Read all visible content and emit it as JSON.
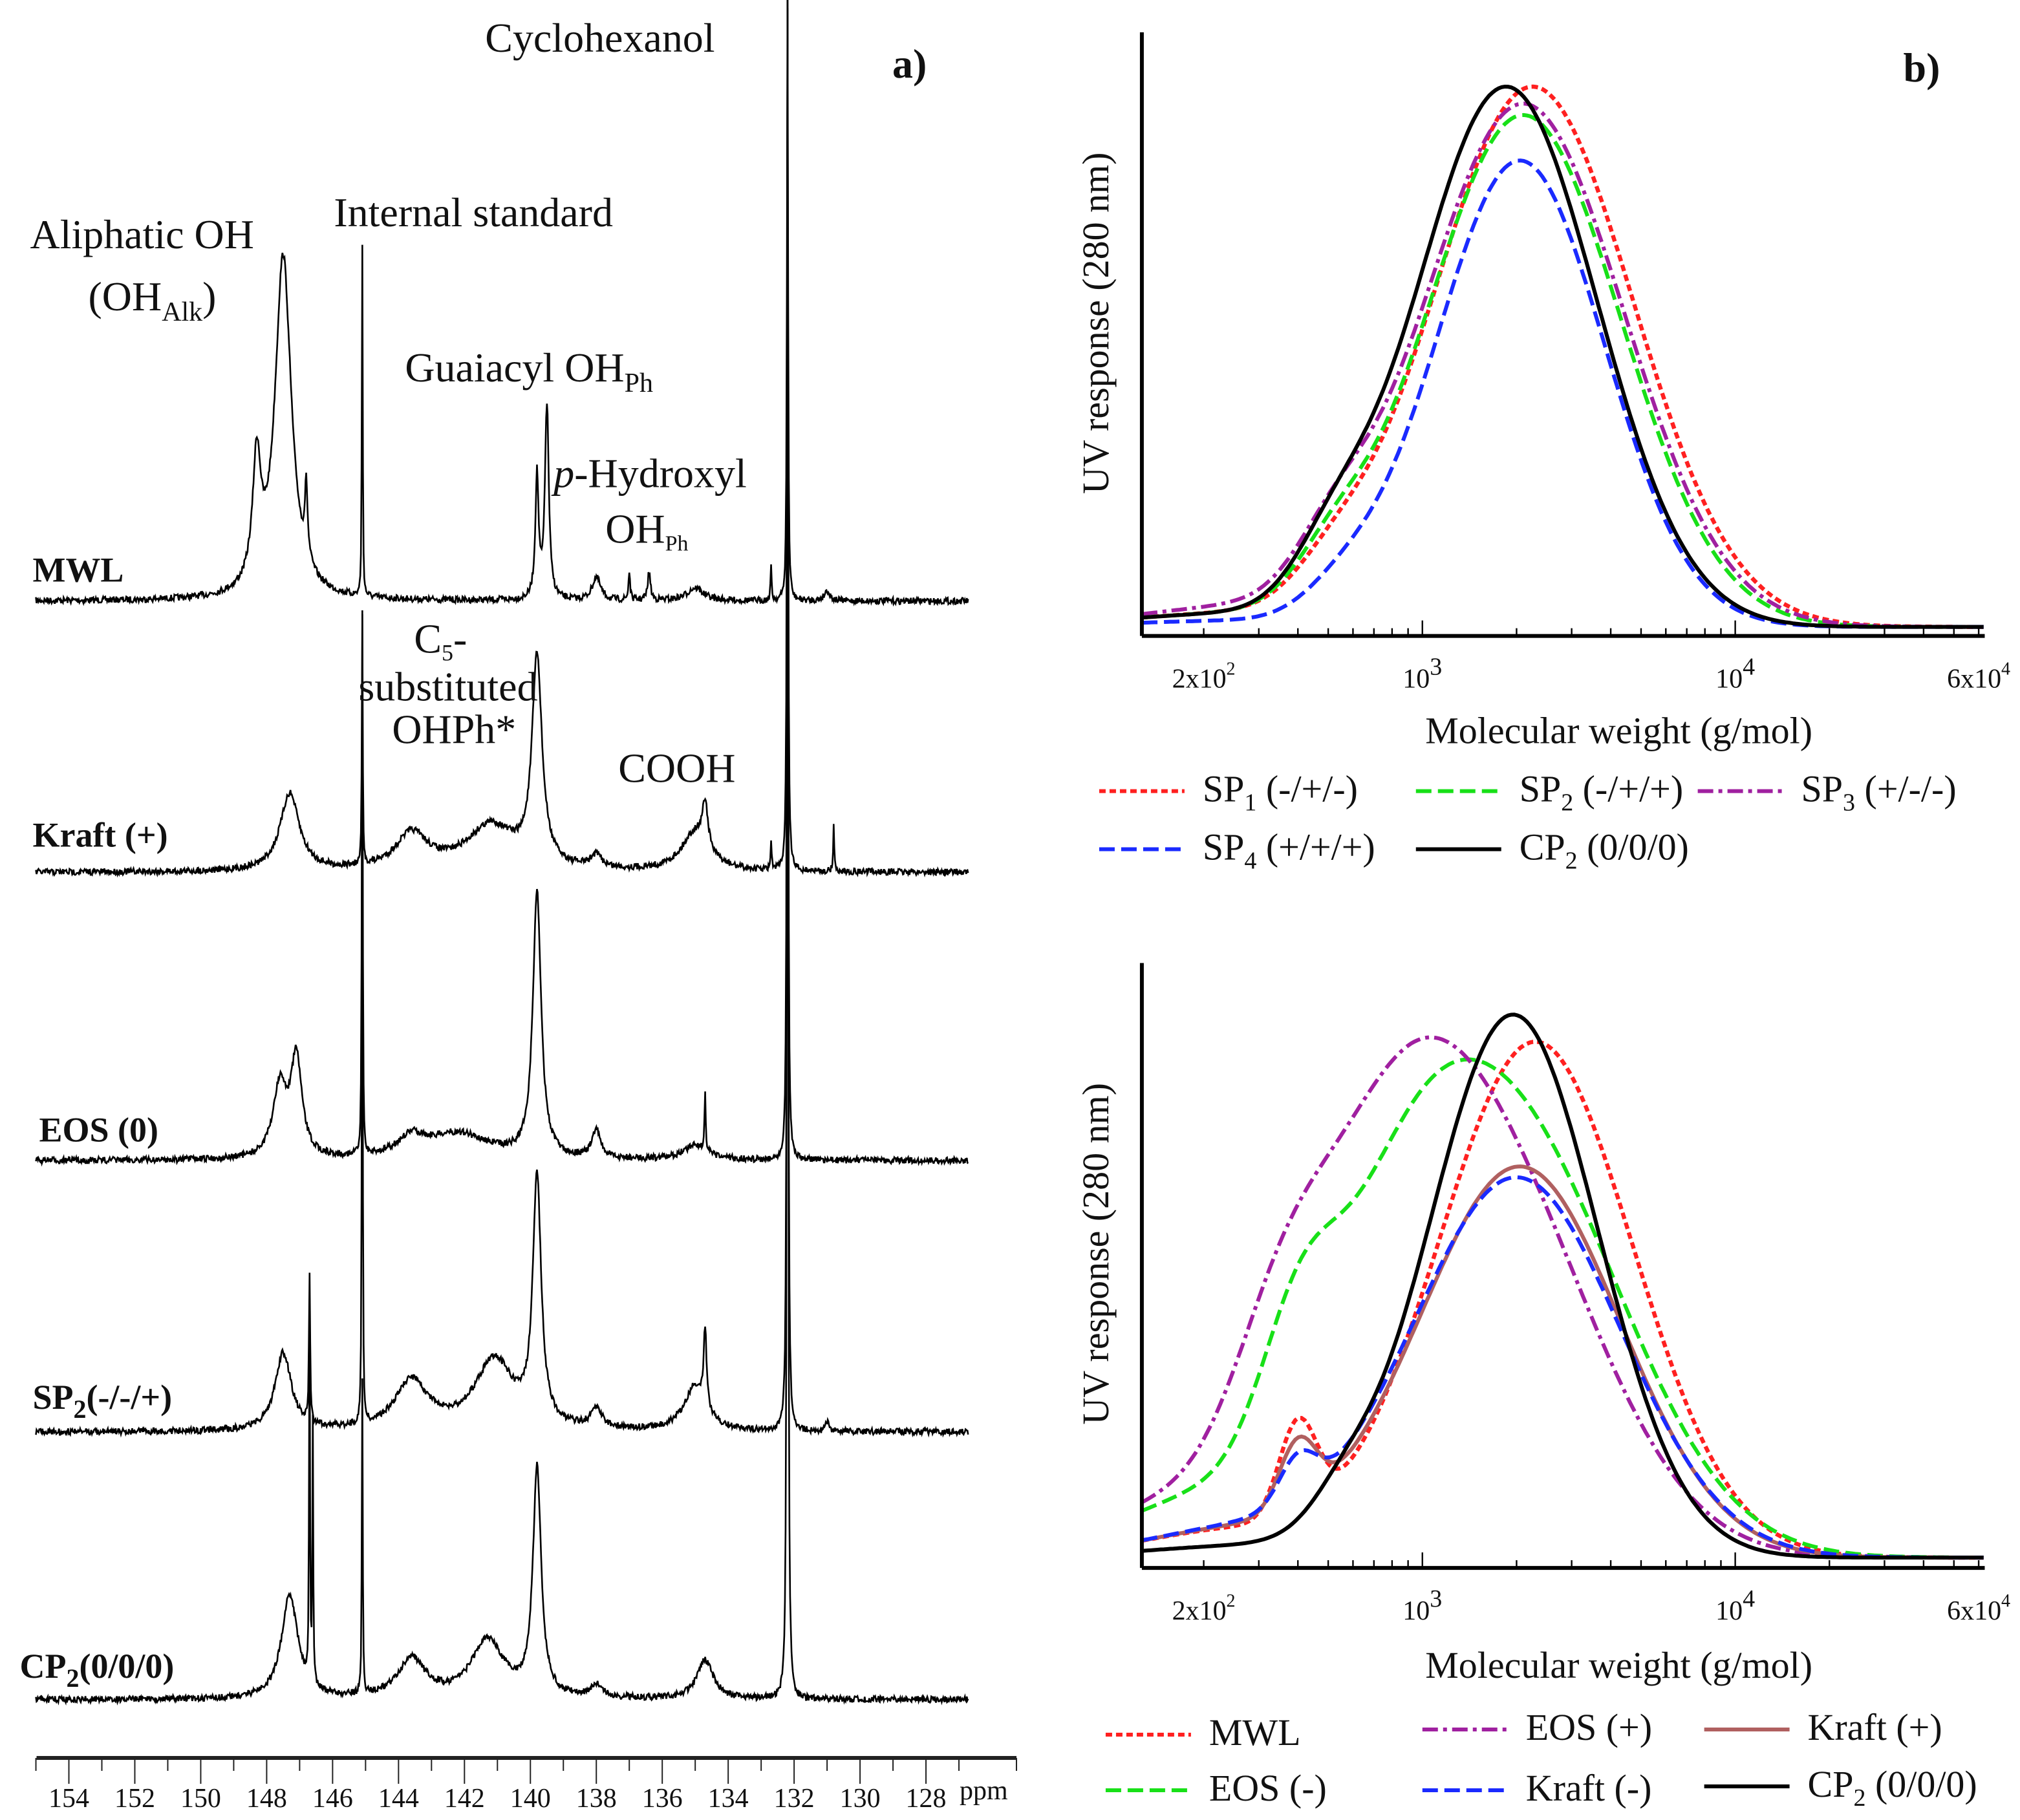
{
  "chart_data": [
    {
      "panel": "a)",
      "type": "line",
      "title": "",
      "xlabel": "ppm",
      "x_ticks": [
        "154",
        "152",
        "150",
        "148",
        "146",
        "144",
        "142",
        "140",
        "138",
        "136",
        "134",
        "132",
        "130",
        "128"
      ],
      "xlim": [
        155,
        126.5
      ],
      "x_reversed": true,
      "annotations": {
        "cyclohexanol": "Cyclohexanol",
        "internal_standard": "Internal standard",
        "aliphatic": "Aliphatic OH",
        "aliphatic_paren_open": "(OH",
        "aliphatic_sub": "Alk",
        "aliphatic_paren_close": ")",
        "guaiacyl": "Guaiacyl OH",
        "guaiacyl_sub": "Ph",
        "p_italic": "p",
        "p_hydroxyl": "-Hydroxyl",
        "p_oh": "OH",
        "p_oh_sub": "Ph",
        "c5_line1": "C",
        "c5_line1_sub": "5",
        "c5_line1_end": "-",
        "c5_line2": "substituted",
        "c5_line3": "OHPh*",
        "cooh": "COOH"
      },
      "series": [
        {
          "name": "MWL",
          "peaks": [
            [
              148.3,
              95,
              0.15
            ],
            [
              147.5,
              265,
              0.3
            ],
            [
              146.8,
              55,
              0.05
            ],
            [
              145.1,
              270,
              0.015
            ],
            [
              139.8,
              95,
              0.06
            ],
            [
              139.5,
              150,
              0.07
            ],
            [
              138.0,
              18,
              0.15
            ],
            [
              137.0,
              22,
              0.03
            ],
            [
              136.4,
              22,
              0.05
            ],
            [
              135.0,
              10,
              0.3
            ],
            [
              132.7,
              25,
              0.02
            ],
            [
              132.2,
              470,
              0.02
            ],
            [
              131.0,
              8,
              0.1
            ]
          ]
        },
        {
          "name": "Kraft (+)",
          "peaks": [
            [
              147.3,
              60,
              0.35
            ],
            [
              145.1,
              190,
              0.015
            ],
            [
              143.6,
              28,
              0.6
            ],
            [
              141.2,
              35,
              0.9
            ],
            [
              139.8,
              160,
              0.18
            ],
            [
              138.0,
              10,
              0.2
            ],
            [
              135.0,
              30,
              0.5
            ],
            [
              134.7,
              35,
              0.1
            ],
            [
              132.7,
              20,
              0.02
            ],
            [
              132.2,
              665,
              0.02
            ],
            [
              130.8,
              35,
              0.02
            ]
          ]
        },
        {
          "name": "EOS (0)",
          "peaks": [
            [
              147.6,
              55,
              0.25
            ],
            [
              147.1,
              75,
              0.2
            ],
            [
              145.1,
              420,
              0.015
            ],
            [
              143.6,
              14,
              0.5
            ],
            [
              142.2,
              20,
              1.2
            ],
            [
              139.8,
              205,
              0.15
            ],
            [
              138.0,
              22,
              0.15
            ],
            [
              135.0,
              12,
              0.4
            ],
            [
              134.7,
              45,
              0.02
            ],
            [
              132.2,
              890,
              0.02
            ]
          ]
        },
        {
          "name": "SP",
          "name_sub": "2",
          "name_suffix": "(-/-/+)",
          "peaks": [
            [
              147.5,
              60,
              0.3
            ],
            [
              146.7,
              115,
              0.02
            ],
            [
              145.1,
              480,
              0.015
            ],
            [
              143.6,
              38,
              0.6
            ],
            [
              141.1,
              55,
              0.7
            ],
            [
              139.8,
              190,
              0.15
            ],
            [
              138.0,
              15,
              0.2
            ],
            [
              135.0,
              35,
              0.4
            ],
            [
              134.7,
              60,
              0.05
            ],
            [
              132.2,
              1110,
              0.02
            ],
            [
              131.0,
              8,
              0.05
            ]
          ]
        },
        {
          "name": "CP",
          "name_sub": "2",
          "name_suffix": "(0/0/0)",
          "peaks": [
            [
              147.3,
              80,
              0.3
            ],
            [
              146.7,
              290,
              0.015
            ],
            [
              146.6,
              200,
              0.015
            ],
            [
              145.1,
              245,
              0.015
            ],
            [
              143.6,
              30,
              0.5
            ],
            [
              141.3,
              45,
              0.6
            ],
            [
              139.8,
              175,
              0.15
            ],
            [
              138.0,
              10,
              0.2
            ],
            [
              134.7,
              30,
              0.3
            ],
            [
              132.2,
              1320,
              0.02
            ]
          ]
        }
      ]
    },
    {
      "panel": "b)",
      "type": "line",
      "xlabel": "Molecular weight (g/mol)",
      "ylabel": "UV response (280 nm)",
      "x_scale": "log",
      "xlim": [
        127,
        62700
      ],
      "x_ticks": [
        {
          "v": 200,
          "base": "2x10",
          "exp": "2"
        },
        {
          "v": 1000,
          "base": "10",
          "exp": "3"
        },
        {
          "v": 10000,
          "base": "10",
          "exp": "4"
        },
        {
          "v": 60000,
          "base": "6x10",
          "exp": "4"
        }
      ],
      "components_format": "gaussian in log10(M): [peak_mw, response, width_log10]",
      "series": [
        {
          "name": "SP",
          "sub": "1",
          "suffix": " (-/+/-)",
          "color": "#ff2020",
          "dash": "dot",
          "components": [
            [
              2250,
              0.95,
              0.32
            ],
            [
              520,
              0.05,
              0.12
            ],
            [
              200,
              0.02,
              0.3
            ]
          ]
        },
        {
          "name": "SP",
          "sub": "2",
          "suffix": " (-/+/+)",
          "color": "#18e018",
          "dash": "dash",
          "components": [
            [
              2100,
              0.9,
              0.31
            ],
            [
              520,
              0.07,
              0.12
            ],
            [
              200,
              0.02,
              0.3
            ]
          ]
        },
        {
          "name": "SP",
          "sub": "3",
          "suffix": " (+/-/-)",
          "color": "#a020a0",
          "dash": "dashdot",
          "components": [
            [
              2100,
              0.92,
              0.32
            ],
            [
              520,
              0.08,
              0.12
            ],
            [
              220,
              0.03,
              0.3
            ]
          ]
        },
        {
          "name": "SP",
          "sub": "4",
          "suffix": " (+/+/+)",
          "color": "#1a2aff",
          "dash": "dash",
          "components": [
            [
              2050,
              0.82,
              0.27
            ],
            [
              560,
              0.04,
              0.12
            ],
            [
              220,
              0.01,
              0.3
            ]
          ]
        },
        {
          "name": "CP",
          "sub": "2",
          "suffix": " (0/0/0)",
          "color": "#000000",
          "dash": "solid",
          "components": [
            [
              1850,
              0.95,
              0.29
            ],
            [
              520,
              0.08,
              0.12
            ],
            [
              200,
              0.02,
              0.3
            ]
          ]
        }
      ]
    },
    {
      "panel": "b) lower",
      "type": "line",
      "xlabel": "Molecular weight (g/mol)",
      "ylabel": "UV response (280 nm)",
      "x_scale": "log",
      "xlim": [
        127,
        62700
      ],
      "x_ticks": [
        {
          "v": 200,
          "base": "2x10",
          "exp": "2"
        },
        {
          "v": 1000,
          "base": "10",
          "exp": "3"
        },
        {
          "v": 10000,
          "base": "10",
          "exp": "4"
        },
        {
          "v": 60000,
          "base": "6x10",
          "exp": "4"
        }
      ],
      "series": [
        {
          "name": "MWL",
          "sub": "",
          "suffix": "",
          "color": "#ff2020",
          "dash": "dot",
          "components": [
            [
              2300,
              0.95,
              0.31
            ],
            [
              400,
              0.17,
              0.06
            ],
            [
              250,
              0.05,
              0.3
            ]
          ]
        },
        {
          "name": "EOS (-)",
          "sub": "",
          "suffix": "",
          "color": "#18e018",
          "dash": "dash",
          "components": [
            [
              1900,
              0.78,
              0.36
            ],
            [
              800,
              0.3,
              0.25
            ],
            [
              400,
              0.2,
              0.12
            ],
            [
              200,
              0.1,
              0.3
            ]
          ]
        },
        {
          "name": "EOS (+)",
          "sub": "",
          "suffix": "",
          "color": "#a020a0",
          "dash": "dashdot",
          "components": [
            [
              1500,
              0.75,
              0.35
            ],
            [
              700,
              0.35,
              0.25
            ],
            [
              350,
              0.2,
              0.15
            ],
            [
              180,
              0.1,
              0.3
            ]
          ]
        },
        {
          "name": "Kraft (+)",
          "sub": "",
          "suffix": "",
          "color": "#b06060",
          "dash": "solid",
          "components": [
            [
              2050,
              0.72,
              0.32
            ],
            [
              400,
              0.12,
              0.06
            ],
            [
              250,
              0.05,
              0.3
            ]
          ]
        },
        {
          "name": "Kraft (-)",
          "sub": "",
          "suffix": "",
          "color": "#1a2aff",
          "dash": "dash",
          "components": [
            [
              2000,
              0.7,
              0.33
            ],
            [
              400,
              0.08,
              0.06
            ],
            [
              250,
              0.05,
              0.3
            ]
          ]
        },
        {
          "name": "CP",
          "sub": "2",
          "suffix": " (0/0/0)",
          "color": "#000000",
          "dash": "solid",
          "components": [
            [
              1950,
              1.0,
              0.27
            ],
            [
              560,
              0.05,
              0.1
            ],
            [
              250,
              0.02,
              0.3
            ]
          ]
        }
      ]
    }
  ]
}
